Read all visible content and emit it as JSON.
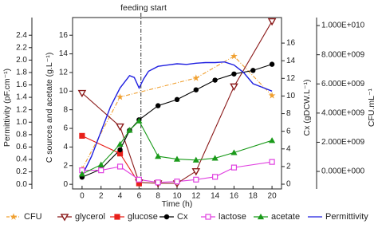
{
  "chart_data": {
    "type": "line",
    "annotation": {
      "text": "feeding start",
      "x": 6.2
    },
    "xlabel": "Time (h)",
    "xlim": [
      -1,
      21
    ],
    "xticks": [
      0,
      2,
      4,
      6,
      8,
      10,
      12,
      14,
      16,
      18,
      20
    ],
    "ylabel": "C sources and acetate (g.L⁻¹)",
    "ylim": [
      -0.5,
      17.9
    ],
    "yticks": [
      0,
      2,
      4,
      6,
      8,
      10,
      12,
      14,
      16
    ],
    "y2label": "Cx (gDCW.L⁻¹)",
    "y2lim": [
      -0.54,
      18.9
    ],
    "y2ticks": [
      0,
      2,
      4,
      6,
      8,
      10,
      12,
      14,
      16
    ],
    "y3label": "Permittivity (pF.cm⁻¹)",
    "y3lim": [
      -0.075,
      2.685
    ],
    "y3ticks": [
      {
        "value": 0,
        "label": "0.0"
      },
      0.2,
      0.4,
      0.6,
      0.8,
      {
        "value": 1,
        "label": "1.0"
      },
      1.2,
      1.4,
      1.6,
      1.8,
      {
        "value": 2,
        "label": "2.0"
      },
      2.2,
      2.4
    ],
    "y4label": "CFU.mL⁻¹",
    "y4lim": [
      -1200000000,
      10550000000
    ],
    "y4ticks": [
      {
        "value": 0,
        "label": "0.000E+000"
      },
      {
        "value": 2000000000,
        "label": "2.000E+009"
      },
      {
        "value": 4000000000,
        "label": "4.000E+009"
      },
      {
        "value": 6000000000,
        "label": "6.000E+009"
      },
      {
        "value": 8000000000,
        "label": "8.000E+009"
      },
      {
        "value": 10000000000,
        "label": "1.000E+010"
      }
    ],
    "grid": false,
    "series": [
      {
        "name": "CFU",
        "color": "#f0a030",
        "marker": "star",
        "dash": true,
        "axis": "y4",
        "x": [
          0,
          4,
          12,
          16,
          20
        ],
        "values": [
          160000000,
          5100000000,
          6400000000,
          7900000000,
          5200000000
        ]
      },
      {
        "name": "glycerol",
        "color": "#8b1a1a",
        "marker": "tri-down-open",
        "axis": "y",
        "x": [
          0,
          4,
          6,
          8,
          10,
          12,
          16,
          20
        ],
        "values": [
          9.8,
          6.2,
          0.2,
          0.1,
          0.1,
          1.4,
          10.5,
          17.5
        ]
      },
      {
        "name": "glucose",
        "color": "#e8201a",
        "marker": "square",
        "axis": "y",
        "x": [
          0,
          4,
          6
        ],
        "values": [
          5.2,
          3.3,
          0.1
        ]
      },
      {
        "name": "Cx",
        "color": "#000000",
        "marker": "circle",
        "axis": "y2",
        "x": [
          0,
          2,
          4,
          5,
          6,
          8,
          10,
          12,
          14,
          16,
          18,
          20
        ],
        "values": [
          0.8,
          1.7,
          3.9,
          6.1,
          7.3,
          8.9,
          9.6,
          10.7,
          11.8,
          12.5,
          12.9,
          13.6
        ]
      },
      {
        "name": "lactose",
        "color": "#e040e0",
        "marker": "square-open",
        "axis": "y",
        "x": [
          0,
          2,
          4,
          6,
          8,
          10,
          12,
          14,
          16,
          20
        ],
        "values": [
          1.5,
          1.5,
          1.9,
          0.5,
          0.2,
          0.3,
          0.5,
          0.8,
          1.8,
          2.4
        ]
      },
      {
        "name": "acetate",
        "color": "#1a9a1a",
        "marker": "tri-up",
        "axis": "y",
        "x": [
          0,
          2,
          4,
          5,
          6,
          8,
          10,
          12,
          14,
          16,
          20
        ],
        "values": [
          1.1,
          2.1,
          4.3,
          5.8,
          6.8,
          3.0,
          2.7,
          2.6,
          2.8,
          3.4,
          4.7
        ]
      },
      {
        "name": "Permittivity",
        "color": "#1f1fe0",
        "marker": "none",
        "axis": "y3",
        "x": [
          0,
          1,
          2,
          3,
          4,
          5,
          5.5,
          6,
          6.5,
          7,
          8,
          9,
          10,
          11,
          12,
          13,
          14,
          15,
          16,
          17,
          18,
          19,
          20
        ],
        "values": [
          0.14,
          0.45,
          0.85,
          1.25,
          1.55,
          1.75,
          1.72,
          1.55,
          1.7,
          1.82,
          1.9,
          1.92,
          1.94,
          1.93,
          1.95,
          1.96,
          1.96,
          1.97,
          1.92,
          1.8,
          1.62,
          1.56,
          1.5
        ]
      }
    ]
  }
}
